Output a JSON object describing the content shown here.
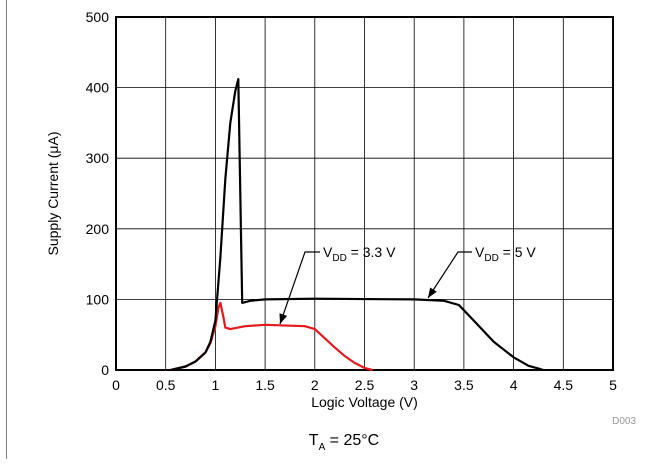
{
  "chart_data": {
    "type": "line",
    "title": "",
    "xlabel": "Logic Voltage (V)",
    "ylabel": "Supply Current (μA)",
    "xlim": [
      0,
      5
    ],
    "ylim": [
      0,
      500
    ],
    "xticks": [
      0,
      0.5,
      1,
      1.5,
      2,
      2.5,
      3,
      3.5,
      4,
      4.5,
      5
    ],
    "xtick_labels": [
      "0",
      "0.5",
      "1",
      "1.5",
      "2",
      "2.5",
      "3",
      "3.5",
      "4",
      "4.5",
      "5"
    ],
    "yticks": [
      0,
      100,
      200,
      300,
      400,
      500
    ],
    "ytick_labels": [
      "0",
      "100",
      "200",
      "300",
      "400",
      "500"
    ],
    "grid": true,
    "legend": "none",
    "series": [
      {
        "color": "#000000",
        "x": [
          0.55,
          0.7,
          0.8,
          0.9,
          0.95,
          1.0,
          1.05,
          1.1,
          1.15,
          1.2,
          1.23,
          1.27,
          1.35,
          1.5,
          2.0,
          3.0,
          3.3,
          3.45,
          3.6,
          3.8,
          4.0,
          4.15,
          4.25,
          4.3
        ],
        "y": [
          0,
          5,
          12,
          25,
          40,
          70,
          160,
          270,
          350,
          395,
          412,
          95,
          98,
          100,
          101,
          100,
          98,
          92,
          70,
          40,
          18,
          6,
          2,
          0
        ]
      },
      {
        "color": "#e41a1c",
        "x": [
          0.55,
          0.7,
          0.8,
          0.9,
          0.95,
          1.0,
          1.03,
          1.05,
          1.08,
          1.1,
          1.15,
          1.3,
          1.5,
          1.9,
          2.0,
          2.1,
          2.2,
          2.3,
          2.4,
          2.5,
          2.58
        ],
        "y": [
          0,
          5,
          12,
          25,
          38,
          62,
          88,
          95,
          75,
          60,
          58,
          62,
          64,
          62,
          58,
          45,
          32,
          20,
          10,
          3,
          0
        ]
      }
    ],
    "annotations": [
      {
        "main": "V",
        "sub": "DD",
        "rest": " = 3.3 V"
      },
      {
        "main": "V",
        "sub": "DD",
        "rest": " = 5 V"
      }
    ],
    "condition": {
      "main": "T",
      "sub": "A",
      "rest": " = 25°C"
    },
    "figure_id": "D003"
  }
}
